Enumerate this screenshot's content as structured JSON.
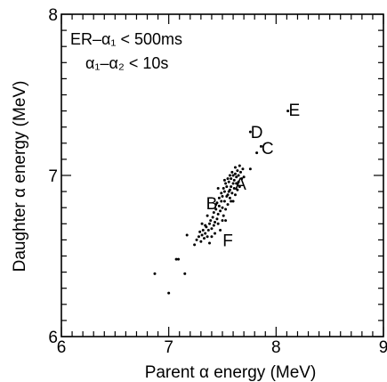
{
  "chart_data": {
    "type": "scatter",
    "xlabel": "Parent α energy (MeV)",
    "ylabel": "Daughter α energy (MeV)",
    "xlim": [
      6,
      9
    ],
    "ylim": [
      6,
      8
    ],
    "x_major_ticks": [
      6,
      7,
      8,
      9
    ],
    "y_major_ticks": [
      6,
      7,
      8
    ],
    "x_tick_labels": [
      "6",
      "7",
      "8",
      "9"
    ],
    "y_tick_labels": [
      "6",
      "7",
      "8"
    ],
    "minor_tick_step_x": 0.1,
    "minor_tick_step_y": 0.1,
    "grid": false,
    "annotations": [
      "ER–α₁ < 500ms",
      "α₁–α₂ < 10s"
    ],
    "point_labels": [
      {
        "text": "A",
        "x": 7.67,
        "y": 6.95
      },
      {
        "text": "B",
        "x": 7.4,
        "y": 6.83
      },
      {
        "text": "C",
        "x": 7.92,
        "y": 7.17
      },
      {
        "text": "D",
        "x": 7.82,
        "y": 7.27
      },
      {
        "text": "E",
        "x": 8.17,
        "y": 7.41
      },
      {
        "text": "F",
        "x": 7.55,
        "y": 6.6
      }
    ],
    "points": [
      [
        6.87,
        6.39
      ],
      [
        7.0,
        6.27
      ],
      [
        7.07,
        6.48
      ],
      [
        7.09,
        6.48
      ],
      [
        7.15,
        6.39
      ],
      [
        7.17,
        6.63
      ],
      [
        7.24,
        6.57
      ],
      [
        7.26,
        6.6
      ],
      [
        7.28,
        6.62
      ],
      [
        7.29,
        6.65
      ],
      [
        7.3,
        6.59
      ],
      [
        7.31,
        6.63
      ],
      [
        7.32,
        6.66
      ],
      [
        7.33,
        6.61
      ],
      [
        7.34,
        6.64
      ],
      [
        7.35,
        6.68
      ],
      [
        7.36,
        6.62
      ],
      [
        7.37,
        6.66
      ],
      [
        7.38,
        6.7
      ],
      [
        7.38,
        6.58
      ],
      [
        7.39,
        6.72
      ],
      [
        7.4,
        6.67
      ],
      [
        7.41,
        6.74
      ],
      [
        7.42,
        6.69
      ],
      [
        7.42,
        6.77
      ],
      [
        7.43,
        6.71
      ],
      [
        7.44,
        6.79
      ],
      [
        7.45,
        6.73
      ],
      [
        7.45,
        6.83
      ],
      [
        7.46,
        6.76
      ],
      [
        7.47,
        6.81
      ],
      [
        7.47,
        6.86
      ],
      [
        7.48,
        6.78
      ],
      [
        7.49,
        6.84
      ],
      [
        7.49,
        6.89
      ],
      [
        7.5,
        6.8
      ],
      [
        7.5,
        6.87
      ],
      [
        7.51,
        6.92
      ],
      [
        7.51,
        6.75
      ],
      [
        7.52,
        6.84
      ],
      [
        7.52,
        6.9
      ],
      [
        7.53,
        6.95
      ],
      [
        7.53,
        6.79
      ],
      [
        7.54,
        6.87
      ],
      [
        7.54,
        6.93
      ],
      [
        7.55,
        6.98
      ],
      [
        7.55,
        6.82
      ],
      [
        7.56,
        6.9
      ],
      [
        7.56,
        6.96
      ],
      [
        7.57,
        7.0
      ],
      [
        7.57,
        6.86
      ],
      [
        7.58,
        6.93
      ],
      [
        7.58,
        6.98
      ],
      [
        7.59,
        7.02
      ],
      [
        7.59,
        6.89
      ],
      [
        7.6,
        6.95
      ],
      [
        7.6,
        7.0
      ],
      [
        7.61,
        6.92
      ],
      [
        7.61,
        6.97
      ],
      [
        7.62,
        7.01
      ],
      [
        7.62,
        6.88
      ],
      [
        7.63,
        6.95
      ],
      [
        7.63,
        6.99
      ],
      [
        7.64,
        7.03
      ],
      [
        7.65,
        6.96
      ],
      [
        7.65,
        7.0
      ],
      [
        7.66,
        6.93
      ],
      [
        7.67,
        7.02
      ],
      [
        7.68,
        6.98
      ],
      [
        7.69,
        7.04
      ],
      [
        7.43,
        6.64
      ],
      [
        7.46,
        6.7
      ],
      [
        7.36,
        6.75
      ],
      [
        7.5,
        6.72
      ],
      [
        7.55,
        6.88
      ],
      [
        7.58,
        6.84
      ],
      [
        7.62,
        7.05
      ],
      [
        7.46,
        6.92
      ],
      [
        7.52,
        6.97
      ],
      [
        7.4,
        6.62
      ],
      [
        7.31,
        6.7
      ],
      [
        7.48,
        6.66
      ],
      [
        7.57,
        6.91
      ],
      [
        7.64,
        6.91
      ],
      [
        7.7,
        6.99
      ],
      [
        7.53,
        6.72
      ],
      [
        7.44,
        6.82
      ],
      [
        7.34,
        6.69
      ],
      [
        7.6,
        6.84
      ],
      [
        7.66,
        7.06
      ],
      [
        7.76,
        7.04
      ],
      [
        7.82,
        7.14
      ],
      [
        7.86,
        7.18
      ],
      [
        7.76,
        7.27
      ],
      [
        8.11,
        7.4
      ]
    ]
  }
}
